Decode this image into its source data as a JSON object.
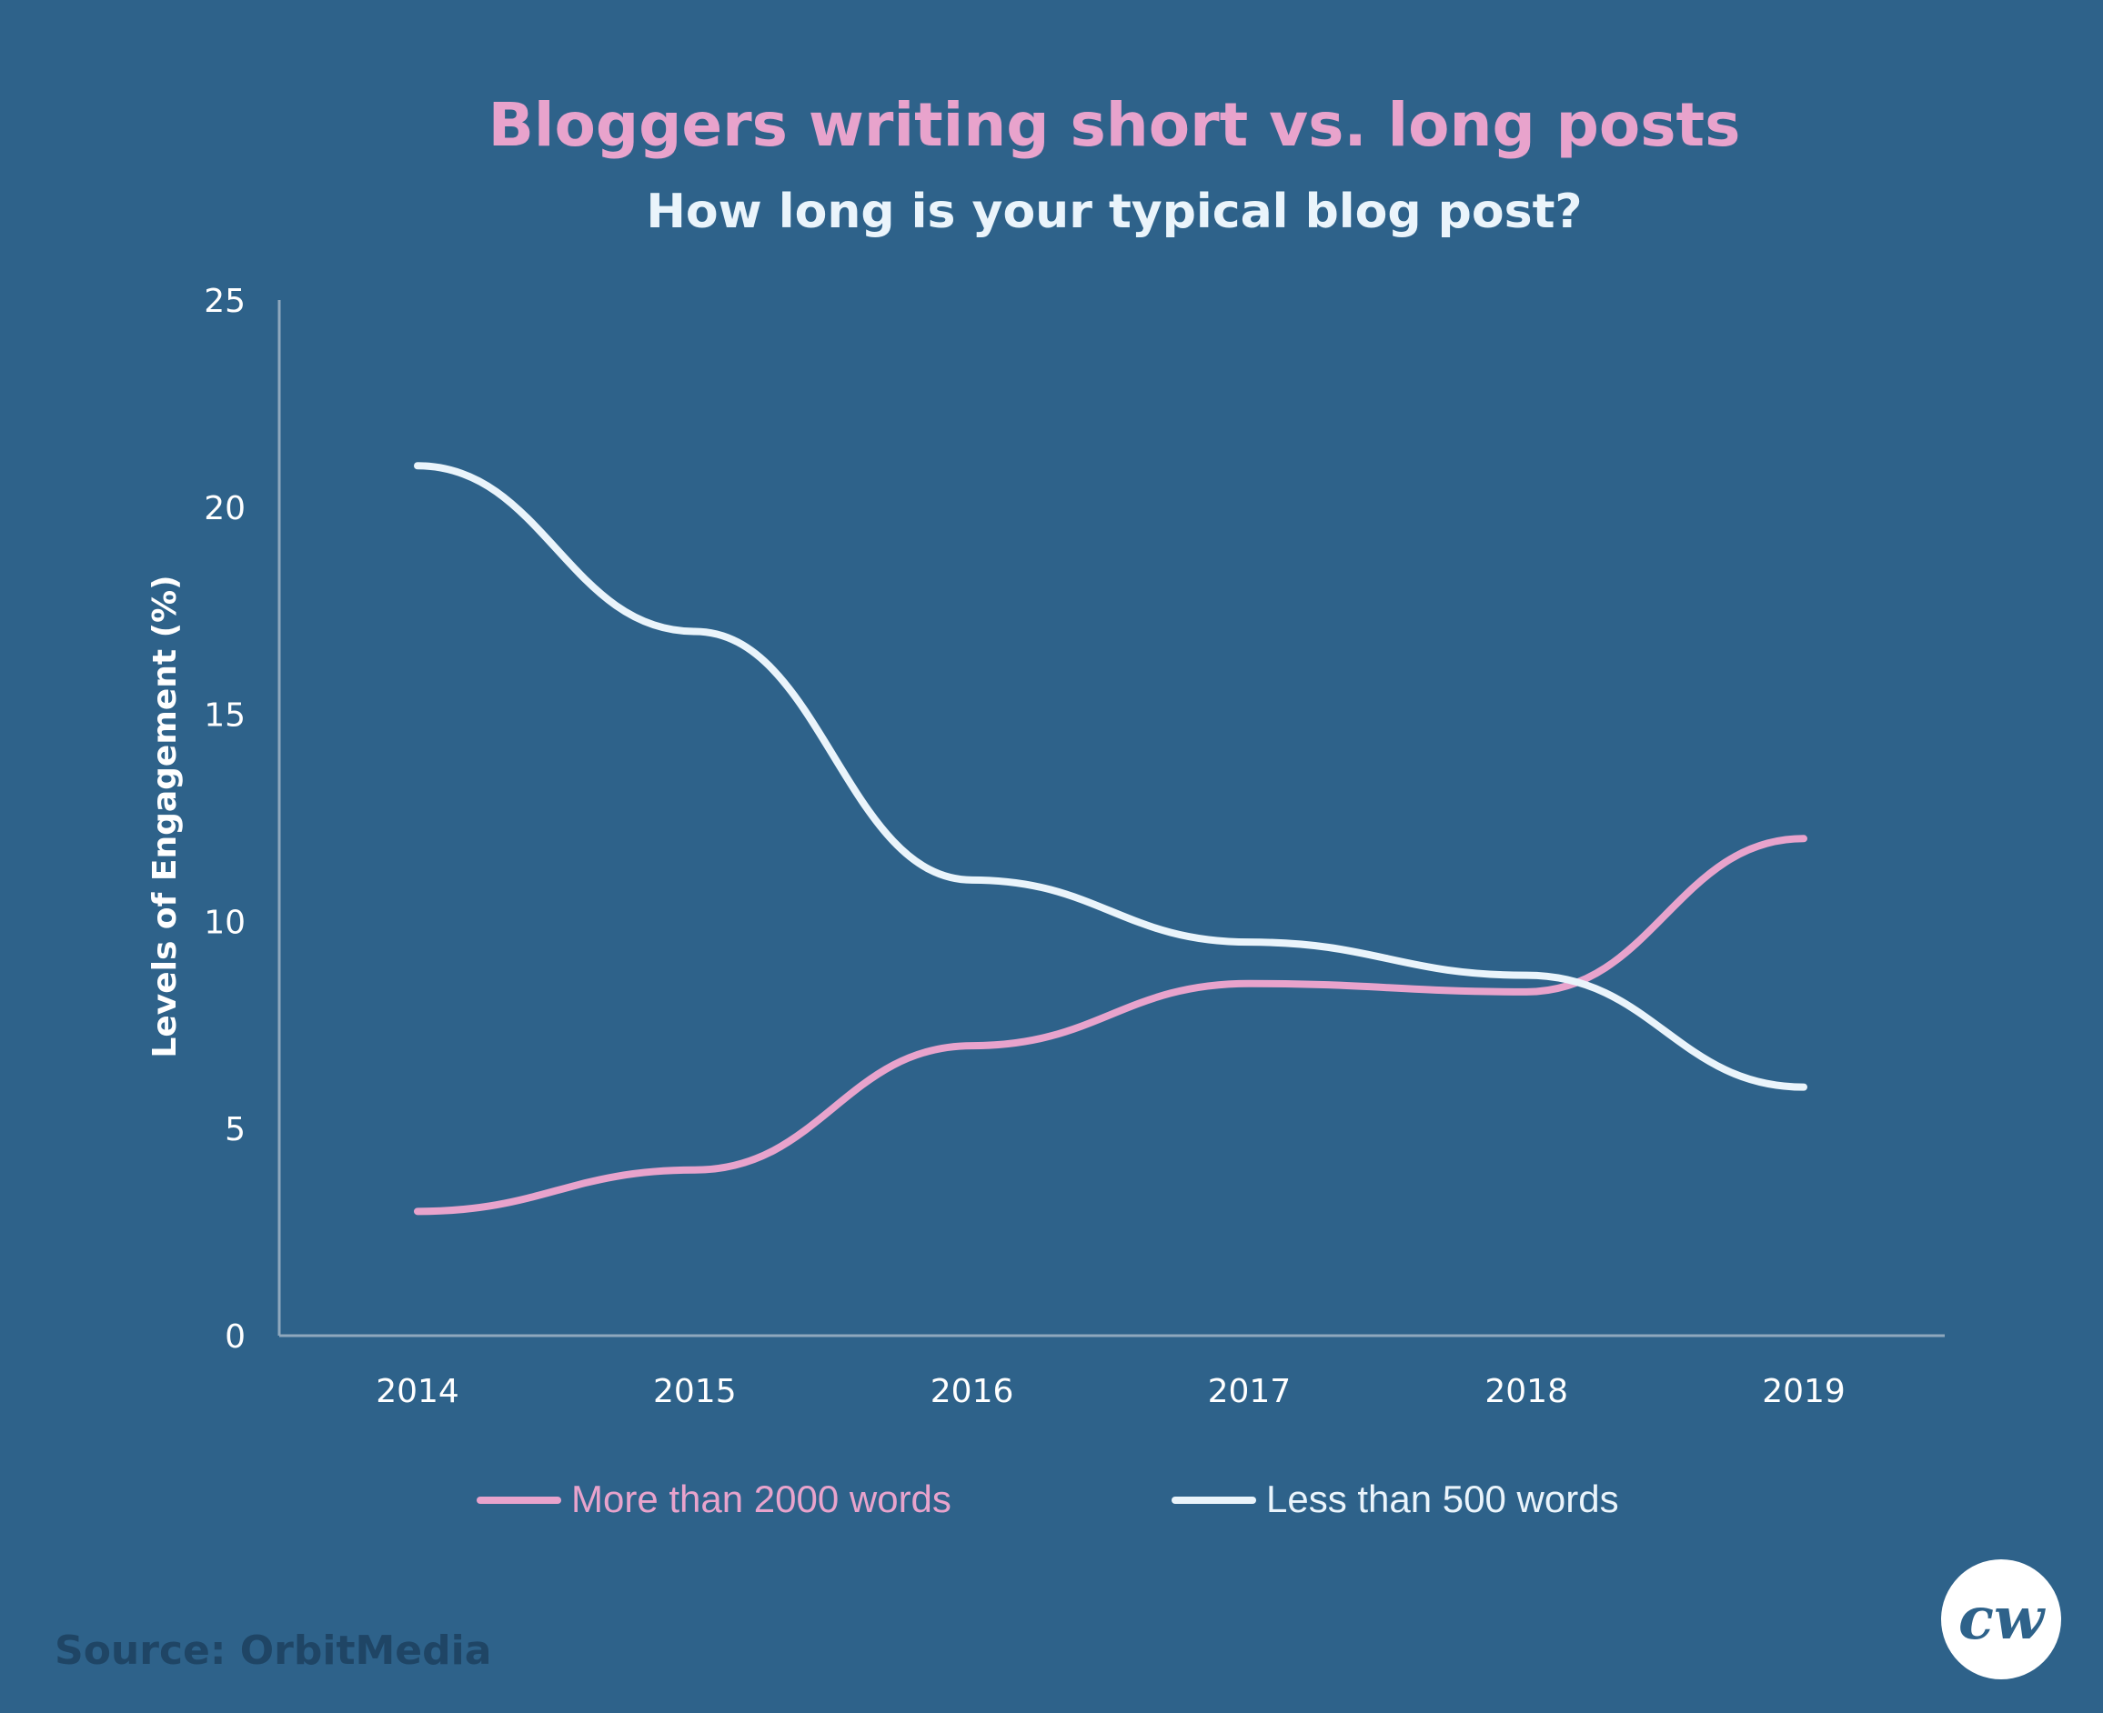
{
  "colors": {
    "background": "#2e628a",
    "title": "#e8a3cc",
    "subtitle": "#eaf4fb",
    "axis": "#8fa8bd",
    "source": "#1f4565"
  },
  "logo": {
    "text": "cw",
    "icon": "cw-logo-icon"
  },
  "source_text": "Source: OrbitMedia",
  "chart_data": {
    "type": "line",
    "title": "Bloggers writing short vs. long posts",
    "subtitle": "How long is your typical blog post?",
    "xlabel": "",
    "ylabel": "Levels of Engagement (%)",
    "x": [
      "2014",
      "2015",
      "2016",
      "2017",
      "2018",
      "2019"
    ],
    "ylim": [
      0,
      25
    ],
    "yticks": [
      0,
      5,
      10,
      15,
      20,
      25
    ],
    "grid": false,
    "legend_position": "bottom",
    "series": [
      {
        "name": "More than 2000 words",
        "color": "#e8a3cc",
        "values": [
          3,
          4,
          7,
          8.5,
          8.3,
          12
        ]
      },
      {
        "name": "Less than 500 words",
        "color": "#eaf4fb",
        "values": [
          21,
          17,
          11,
          9.5,
          8.7,
          6
        ]
      }
    ]
  }
}
